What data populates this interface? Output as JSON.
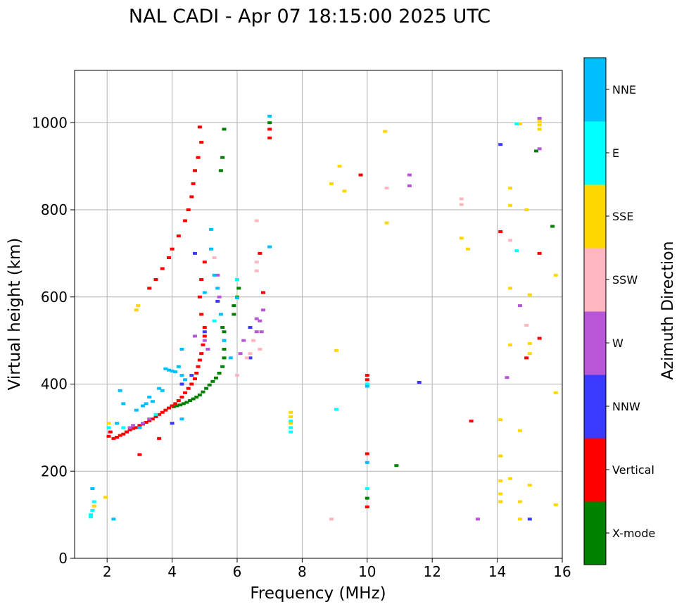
{
  "chart_data": {
    "type": "scatter",
    "title": "NAL CADI - Apr 07 18:15:00 2025 UTC",
    "xlabel": "Frequency (MHz)",
    "ylabel": "Virtual height (km)",
    "xlim": [
      1,
      16
    ],
    "ylim": [
      0,
      1120
    ],
    "xticks": [
      2,
      4,
      6,
      8,
      10,
      12,
      14,
      16
    ],
    "yticks": [
      0,
      200,
      400,
      600,
      800,
      1000
    ],
    "grid": true,
    "colorbar": {
      "title": "Azimuth Direction",
      "categories": [
        "X-mode",
        "Vertical",
        "NNW",
        "W",
        "SSW",
        "SSE",
        "E",
        "NNE"
      ],
      "colors": [
        "#008000",
        "#ff0000",
        "#3a3aff",
        "#b856d8",
        "#ffb6c1",
        "#ffd700",
        "#00ffff",
        "#00bfff"
      ]
    },
    "series": [
      {
        "name": "X-mode",
        "color": "#008000",
        "points": [
          [
            4.05,
            348
          ],
          [
            4.15,
            350
          ],
          [
            4.25,
            352
          ],
          [
            4.35,
            355
          ],
          [
            4.45,
            358
          ],
          [
            4.55,
            362
          ],
          [
            4.65,
            366
          ],
          [
            4.75,
            370
          ],
          [
            4.85,
            375
          ],
          [
            4.95,
            382
          ],
          [
            5.05,
            390
          ],
          [
            5.15,
            398
          ],
          [
            5.25,
            406
          ],
          [
            5.35,
            414
          ],
          [
            5.45,
            425
          ],
          [
            5.55,
            440
          ],
          [
            5.6,
            460
          ],
          [
            5.6,
            480
          ],
          [
            5.6,
            500
          ],
          [
            5.6,
            520
          ],
          [
            5.55,
            530
          ],
          [
            5.9,
            560
          ],
          [
            5.9,
            580
          ],
          [
            6.0,
            600
          ],
          [
            6.05,
            620
          ],
          [
            6.0,
            640
          ],
          [
            5.5,
            890
          ],
          [
            5.55,
            920
          ],
          [
            5.6,
            985
          ],
          [
            7.0,
            1000
          ],
          [
            10.0,
            138
          ],
          [
            10.9,
            213
          ],
          [
            15.2,
            935
          ],
          [
            15.7,
            762
          ]
        ]
      },
      {
        "name": "Vertical",
        "color": "#ff0000",
        "points": [
          [
            2.05,
            280
          ],
          [
            2.1,
            290
          ],
          [
            2.2,
            275
          ],
          [
            2.3,
            278
          ],
          [
            2.4,
            282
          ],
          [
            2.5,
            285
          ],
          [
            2.6,
            290
          ],
          [
            2.7,
            295
          ],
          [
            2.8,
            298
          ],
          [
            2.9,
            300
          ],
          [
            3.0,
            305
          ],
          [
            3.1,
            308
          ],
          [
            3.2,
            312
          ],
          [
            3.3,
            316
          ],
          [
            3.4,
            320
          ],
          [
            3.5,
            325
          ],
          [
            3.6,
            330
          ],
          [
            3.7,
            335
          ],
          [
            3.8,
            340
          ],
          [
            3.9,
            345
          ],
          [
            4.0,
            350
          ],
          [
            4.1,
            355
          ],
          [
            4.2,
            362
          ],
          [
            4.3,
            370
          ],
          [
            4.4,
            380
          ],
          [
            4.5,
            390
          ],
          [
            4.6,
            400
          ],
          [
            4.7,
            412
          ],
          [
            4.75,
            425
          ],
          [
            4.8,
            440
          ],
          [
            4.85,
            455
          ],
          [
            4.9,
            470
          ],
          [
            4.95,
            490
          ],
          [
            5.0,
            510
          ],
          [
            5.0,
            530
          ],
          [
            4.9,
            560
          ],
          [
            4.85,
            600
          ],
          [
            4.9,
            640
          ],
          [
            5.0,
            680
          ],
          [
            3.3,
            620
          ],
          [
            3.5,
            640
          ],
          [
            3.7,
            665
          ],
          [
            3.9,
            690
          ],
          [
            4.0,
            710
          ],
          [
            4.2,
            740
          ],
          [
            4.4,
            775
          ],
          [
            4.5,
            800
          ],
          [
            4.6,
            830
          ],
          [
            4.65,
            860
          ],
          [
            4.7,
            890
          ],
          [
            4.8,
            920
          ],
          [
            4.9,
            955
          ],
          [
            4.85,
            990
          ],
          [
            3.0,
            238
          ],
          [
            3.6,
            275
          ],
          [
            7.0,
            985
          ],
          [
            7.0,
            965
          ],
          [
            6.7,
            700
          ],
          [
            6.8,
            610
          ],
          [
            10.0,
            420
          ],
          [
            10.0,
            410
          ],
          [
            10.0,
            240
          ],
          [
            10.0,
            118
          ],
          [
            13.2,
            315
          ],
          [
            14.1,
            750
          ],
          [
            15.3,
            700
          ],
          [
            15.3,
            505
          ],
          [
            14.9,
            460
          ],
          [
            9.8,
            880
          ]
        ]
      },
      {
        "name": "NNW",
        "color": "#3a3aff",
        "points": [
          [
            4.3,
            400
          ],
          [
            4.6,
            420
          ],
          [
            5.0,
            520
          ],
          [
            4.7,
            700
          ],
          [
            6.4,
            460
          ],
          [
            6.4,
            530
          ],
          [
            11.6,
            404
          ],
          [
            14.1,
            950
          ],
          [
            15.0,
            90
          ],
          [
            4.0,
            310
          ],
          [
            5.4,
            590
          ]
        ]
      },
      {
        "name": "W",
        "color": "#b856d8",
        "points": [
          [
            2.7,
            300
          ],
          [
            2.8,
            305
          ],
          [
            3.1,
            310
          ],
          [
            3.3,
            320
          ],
          [
            4.7,
            510
          ],
          [
            5.0,
            500
          ],
          [
            5.1,
            480
          ],
          [
            5.4,
            650
          ],
          [
            5.45,
            600
          ],
          [
            6.1,
            470
          ],
          [
            6.2,
            500
          ],
          [
            6.6,
            520
          ],
          [
            6.6,
            550
          ],
          [
            6.7,
            545
          ],
          [
            6.75,
            520
          ],
          [
            11.3,
            880
          ],
          [
            11.3,
            855
          ],
          [
            13.4,
            90
          ],
          [
            14.3,
            415
          ],
          [
            14.7,
            580
          ],
          [
            15.3,
            1010
          ],
          [
            15.3,
            940
          ],
          [
            6.8,
            570
          ]
        ]
      },
      {
        "name": "SSW",
        "color": "#ffb6c1",
        "points": [
          [
            5.3,
            690
          ],
          [
            6.0,
            420
          ],
          [
            6.3,
            460
          ],
          [
            6.4,
            470
          ],
          [
            6.6,
            680
          ],
          [
            6.6,
            660
          ],
          [
            6.6,
            775
          ],
          [
            6.7,
            480
          ],
          [
            10.6,
            850
          ],
          [
            12.9,
            825
          ],
          [
            12.9,
            812
          ],
          [
            14.4,
            730
          ],
          [
            14.9,
            535
          ],
          [
            8.9,
            90
          ],
          [
            6.5,
            500
          ]
        ]
      },
      {
        "name": "SSE",
        "color": "#ffd700",
        "points": [
          [
            1.6,
            120
          ],
          [
            1.95,
            140
          ],
          [
            2.05,
            310
          ],
          [
            2.9,
            570
          ],
          [
            2.95,
            580
          ],
          [
            7.65,
            335
          ],
          [
            7.65,
            325
          ],
          [
            7.65,
            310
          ],
          [
            8.9,
            860
          ],
          [
            9.15,
            900
          ],
          [
            9.3,
            843
          ],
          [
            9.05,
            477
          ],
          [
            10.55,
            980
          ],
          [
            10.6,
            770
          ],
          [
            12.9,
            735
          ],
          [
            13.1,
            710
          ],
          [
            14.1,
            318
          ],
          [
            14.1,
            235
          ],
          [
            14.1,
            178
          ],
          [
            14.1,
            148
          ],
          [
            14.1,
            130
          ],
          [
            14.4,
            850
          ],
          [
            14.4,
            810
          ],
          [
            14.4,
            620
          ],
          [
            14.4,
            490
          ],
          [
            14.4,
            183
          ],
          [
            14.7,
            293
          ],
          [
            14.7,
            130
          ],
          [
            14.7,
            90
          ],
          [
            14.9,
            800
          ],
          [
            15.0,
            605
          ],
          [
            15.0,
            493
          ],
          [
            15.0,
            168
          ],
          [
            15.3,
            985
          ],
          [
            15.3,
            995
          ],
          [
            15.3,
            1003
          ],
          [
            15.8,
            650
          ],
          [
            15.8,
            380
          ],
          [
            15.8,
            123
          ],
          [
            14.7,
            997
          ],
          [
            15.0,
            470
          ]
        ]
      },
      {
        "name": "E",
        "color": "#00ffff",
        "points": [
          [
            1.5,
            100
          ],
          [
            1.55,
            110
          ],
          [
            1.5,
            95
          ],
          [
            1.6,
            130
          ],
          [
            2.05,
            300
          ],
          [
            2.5,
            300
          ],
          [
            3.5,
            330
          ],
          [
            7.65,
            300
          ],
          [
            7.65,
            290
          ],
          [
            7.65,
            315
          ],
          [
            9.05,
            342
          ],
          [
            10.0,
            400
          ],
          [
            10.0,
            160
          ],
          [
            14.6,
            706
          ],
          [
            14.6,
            997
          ],
          [
            6.0,
            640
          ],
          [
            5.3,
            545
          ]
        ]
      },
      {
        "name": "NNE",
        "color": "#00bfff",
        "points": [
          [
            3.8,
            435
          ],
          [
            3.9,
            432
          ],
          [
            4.0,
            430
          ],
          [
            4.1,
            428
          ],
          [
            4.2,
            440
          ],
          [
            4.3,
            420
          ],
          [
            4.4,
            410
          ],
          [
            3.6,
            390
          ],
          [
            3.7,
            385
          ],
          [
            3.3,
            370
          ],
          [
            3.2,
            355
          ],
          [
            3.4,
            360
          ],
          [
            2.9,
            340
          ],
          [
            3.1,
            350
          ],
          [
            2.5,
            355
          ],
          [
            2.4,
            385
          ],
          [
            2.3,
            310
          ],
          [
            5.2,
            755
          ],
          [
            5.2,
            710
          ],
          [
            5.3,
            650
          ],
          [
            5.4,
            620
          ],
          [
            5.5,
            560
          ],
          [
            5.6,
            500
          ],
          [
            5.8,
            460
          ],
          [
            6.0,
            598
          ],
          [
            7.0,
            715
          ],
          [
            4.3,
            480
          ],
          [
            4.3,
            320
          ],
          [
            2.2,
            90
          ],
          [
            1.55,
            160
          ],
          [
            10.0,
            220
          ],
          [
            10.0,
            395
          ],
          [
            7.0,
            1015
          ],
          [
            5.0,
            610
          ],
          [
            3.0,
            300
          ]
        ]
      }
    ]
  }
}
